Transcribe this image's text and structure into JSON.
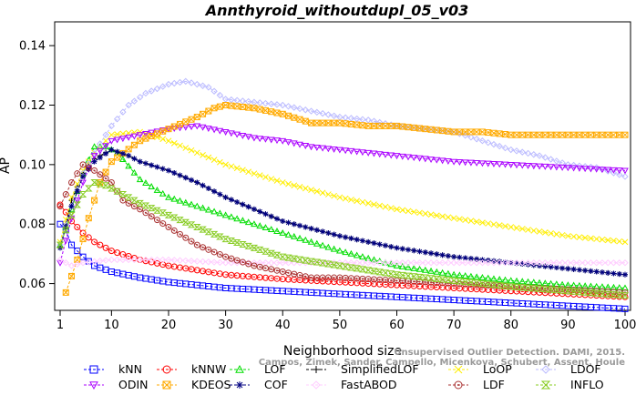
{
  "chart_data": {
    "type": "line",
    "title": "Annthyroid_withoutdupl_05_v03",
    "xlabel": "Neighborhood size",
    "ylabel": "AP",
    "xlim": [
      1,
      100
    ],
    "ylim": [
      0.051,
      0.148
    ],
    "x_ticks": [
      1,
      10,
      20,
      30,
      40,
      50,
      60,
      70,
      80,
      90,
      100
    ],
    "y_ticks": [
      0.06,
      0.08,
      0.1,
      0.12,
      0.14
    ],
    "x_tick_labels": [
      "1",
      "10",
      "20",
      "30",
      "40",
      "50",
      "60",
      "70",
      "80",
      "90",
      "100"
    ],
    "y_tick_labels": [
      "0.06",
      "0.08",
      "0.10",
      "0.12",
      "0.14"
    ],
    "grid": false,
    "legend_position": "bottom",
    "series": [
      {
        "name": "kNN",
        "color": "#0000ff",
        "marker": "square",
        "points": [
          [
            1,
            0.08
          ],
          [
            2,
            0.078
          ],
          [
            3,
            0.073
          ],
          [
            5,
            0.069
          ],
          [
            7,
            0.066
          ],
          [
            10,
            0.064
          ],
          [
            15,
            0.062
          ],
          [
            20,
            0.0605
          ],
          [
            30,
            0.0585
          ],
          [
            40,
            0.0575
          ],
          [
            50,
            0.0565
          ],
          [
            60,
            0.0555
          ],
          [
            70,
            0.0545
          ],
          [
            80,
            0.0535
          ],
          [
            90,
            0.0525
          ],
          [
            100,
            0.0515
          ]
        ]
      },
      {
        "name": "kNNW",
        "color": "#ff0000",
        "marker": "circle",
        "points": [
          [
            1,
            0.0865
          ],
          [
            2,
            0.084
          ],
          [
            3,
            0.081
          ],
          [
            5,
            0.077
          ],
          [
            7,
            0.074
          ],
          [
            10,
            0.071
          ],
          [
            15,
            0.068
          ],
          [
            20,
            0.066
          ],
          [
            30,
            0.063
          ],
          [
            40,
            0.0615
          ],
          [
            50,
            0.0605
          ],
          [
            60,
            0.0595
          ],
          [
            70,
            0.0585
          ],
          [
            80,
            0.0575
          ],
          [
            90,
            0.0565
          ],
          [
            100,
            0.0555
          ]
        ]
      },
      {
        "name": "LOF",
        "color": "#00dd00",
        "marker": "triangle",
        "points": [
          [
            1,
            0.073
          ],
          [
            3,
            0.085
          ],
          [
            5,
            0.097
          ],
          [
            7,
            0.106
          ],
          [
            9,
            0.106
          ],
          [
            11,
            0.104
          ],
          [
            15,
            0.095
          ],
          [
            20,
            0.089
          ],
          [
            25,
            0.086
          ],
          [
            30,
            0.083
          ],
          [
            35,
            0.08
          ],
          [
            40,
            0.077
          ],
          [
            50,
            0.071
          ],
          [
            60,
            0.066
          ],
          [
            70,
            0.063
          ],
          [
            80,
            0.061
          ],
          [
            90,
            0.0595
          ],
          [
            100,
            0.0585
          ]
        ]
      },
      {
        "name": "SimplifiedLOF",
        "color": "#000000",
        "marker": "plus",
        "points": [
          [
            1,
            0.072
          ],
          [
            3,
            0.088
          ],
          [
            5,
            0.097
          ],
          [
            7,
            0.102
          ],
          [
            10,
            0.105
          ],
          [
            13,
            0.103
          ],
          [
            15,
            0.101
          ],
          [
            20,
            0.098
          ],
          [
            25,
            0.094
          ],
          [
            30,
            0.089
          ],
          [
            35,
            0.085
          ],
          [
            40,
            0.081
          ],
          [
            50,
            0.076
          ],
          [
            60,
            0.072
          ],
          [
            70,
            0.069
          ],
          [
            80,
            0.067
          ],
          [
            90,
            0.065
          ],
          [
            100,
            0.063
          ]
        ]
      },
      {
        "name": "LoOP",
        "color": "#ffee00",
        "marker": "x",
        "points": [
          [
            1,
            0.074
          ],
          [
            3,
            0.089
          ],
          [
            5,
            0.098
          ],
          [
            7,
            0.104
          ],
          [
            10,
            0.11
          ],
          [
            15,
            0.111
          ],
          [
            20,
            0.108
          ],
          [
            25,
            0.104
          ],
          [
            30,
            0.1
          ],
          [
            40,
            0.094
          ],
          [
            50,
            0.089
          ],
          [
            60,
            0.085
          ],
          [
            70,
            0.082
          ],
          [
            80,
            0.079
          ],
          [
            90,
            0.076
          ],
          [
            100,
            0.074
          ]
        ]
      },
      {
        "name": "LDOF",
        "color": "#bbbbff",
        "marker": "diamond",
        "points": [
          [
            1,
            0.073
          ],
          [
            3,
            0.086
          ],
          [
            5,
            0.097
          ],
          [
            8,
            0.107
          ],
          [
            10,
            0.113
          ],
          [
            13,
            0.12
          ],
          [
            16,
            0.124
          ],
          [
            20,
            0.127
          ],
          [
            23,
            0.128
          ],
          [
            27,
            0.126
          ],
          [
            30,
            0.122
          ],
          [
            35,
            0.121
          ],
          [
            40,
            0.12
          ],
          [
            45,
            0.118
          ],
          [
            50,
            0.116
          ],
          [
            55,
            0.115
          ],
          [
            60,
            0.113
          ],
          [
            65,
            0.112
          ],
          [
            70,
            0.111
          ],
          [
            75,
            0.108
          ],
          [
            80,
            0.105
          ],
          [
            85,
            0.103
          ],
          [
            90,
            0.1
          ],
          [
            95,
            0.099
          ],
          [
            100,
            0.096
          ]
        ]
      },
      {
        "name": "ODIN",
        "color": "#aa00ff",
        "marker": "triangle-down",
        "points": [
          [
            1,
            0.067
          ],
          [
            3,
            0.082
          ],
          [
            5,
            0.094
          ],
          [
            7,
            0.103
          ],
          [
            10,
            0.108
          ],
          [
            15,
            0.11
          ],
          [
            20,
            0.112
          ],
          [
            25,
            0.113
          ],
          [
            30,
            0.111
          ],
          [
            35,
            0.109
          ],
          [
            40,
            0.108
          ],
          [
            45,
            0.106
          ],
          [
            50,
            0.105
          ],
          [
            55,
            0.104
          ],
          [
            60,
            0.103
          ],
          [
            70,
            0.101
          ],
          [
            80,
            0.1
          ],
          [
            90,
            0.099
          ],
          [
            100,
            0.098
          ]
        ]
      },
      {
        "name": "KDEOS",
        "color": "#ffaa00",
        "marker": "square-x",
        "points": [
          [
            2,
            0.057
          ],
          [
            4,
            0.068
          ],
          [
            6,
            0.082
          ],
          [
            8,
            0.094
          ],
          [
            10,
            0.101
          ],
          [
            15,
            0.108
          ],
          [
            20,
            0.112
          ],
          [
            25,
            0.116
          ],
          [
            28,
            0.119
          ],
          [
            30,
            0.12
          ],
          [
            35,
            0.119
          ],
          [
            40,
            0.117
          ],
          [
            45,
            0.114
          ],
          [
            50,
            0.114
          ],
          [
            55,
            0.113
          ],
          [
            60,
            0.113
          ],
          [
            65,
            0.112
          ],
          [
            70,
            0.111
          ],
          [
            75,
            0.111
          ],
          [
            80,
            0.11
          ],
          [
            85,
            0.11
          ],
          [
            90,
            0.11
          ],
          [
            95,
            0.11
          ],
          [
            100,
            0.11
          ]
        ]
      },
      {
        "name": "COF",
        "color": "#000080",
        "marker": "star",
        "points": [
          [
            1,
            0.072
          ],
          [
            3,
            0.086
          ],
          [
            5,
            0.096
          ],
          [
            7,
            0.101
          ],
          [
            10,
            0.105
          ],
          [
            13,
            0.103
          ],
          [
            15,
            0.101
          ],
          [
            20,
            0.098
          ],
          [
            25,
            0.094
          ],
          [
            30,
            0.089
          ],
          [
            35,
            0.085
          ],
          [
            40,
            0.081
          ],
          [
            50,
            0.076
          ],
          [
            60,
            0.072
          ],
          [
            70,
            0.069
          ],
          [
            80,
            0.067
          ],
          [
            90,
            0.065
          ],
          [
            100,
            0.063
          ]
        ]
      },
      {
        "name": "FastABOD",
        "color": "#ffccff",
        "marker": "diamond",
        "points": [
          [
            1,
            0.068
          ],
          [
            3,
            0.066
          ],
          [
            5,
            0.067
          ],
          [
            10,
            0.068
          ],
          [
            15,
            0.068
          ],
          [
            20,
            0.068
          ],
          [
            30,
            0.067
          ],
          [
            40,
            0.067
          ],
          [
            50,
            0.067
          ],
          [
            60,
            0.067
          ],
          [
            70,
            0.067
          ],
          [
            80,
            0.067
          ],
          [
            90,
            0.067
          ],
          [
            100,
            0.067
          ]
        ]
      },
      {
        "name": "LDF",
        "color": "#aa3333",
        "marker": "circle-dot",
        "points": [
          [
            1,
            0.086
          ],
          [
            3,
            0.094
          ],
          [
            5,
            0.1
          ],
          [
            7,
            0.098
          ],
          [
            10,
            0.094
          ],
          [
            12,
            0.088
          ],
          [
            15,
            0.085
          ],
          [
            20,
            0.079
          ],
          [
            25,
            0.073
          ],
          [
            30,
            0.069
          ],
          [
            35,
            0.066
          ],
          [
            40,
            0.064
          ],
          [
            45,
            0.062
          ],
          [
            50,
            0.062
          ],
          [
            60,
            0.061
          ],
          [
            70,
            0.06
          ],
          [
            80,
            0.059
          ],
          [
            90,
            0.058
          ],
          [
            100,
            0.057
          ]
        ]
      },
      {
        "name": "INFLO",
        "color": "#88cc22",
        "marker": "hourglass",
        "points": [
          [
            1,
            0.073
          ],
          [
            3,
            0.083
          ],
          [
            5,
            0.09
          ],
          [
            7,
            0.094
          ],
          [
            9,
            0.093
          ],
          [
            12,
            0.09
          ],
          [
            15,
            0.087
          ],
          [
            20,
            0.083
          ],
          [
            25,
            0.079
          ],
          [
            30,
            0.075
          ],
          [
            35,
            0.072
          ],
          [
            40,
            0.069
          ],
          [
            50,
            0.066
          ],
          [
            60,
            0.063
          ],
          [
            70,
            0.061
          ],
          [
            80,
            0.059
          ],
          [
            90,
            0.0575
          ],
          [
            100,
            0.056
          ]
        ]
      }
    ],
    "legend_rows": [
      [
        "kNN",
        "kNNW",
        "LOF",
        "SimplifiedLOF",
        "LoOP",
        "LDOF"
      ],
      [
        "ODIN",
        "KDEOS",
        "COF",
        "FastABOD",
        "LDF",
        "INFLO"
      ]
    ]
  },
  "watermark": {
    "line1": "Unsupervised Outlier Detection. DAMI, 2015.",
    "line2": "Campos, Zimek, Sander, Campello, Micenkova, Schubert, Assent, Houle"
  }
}
